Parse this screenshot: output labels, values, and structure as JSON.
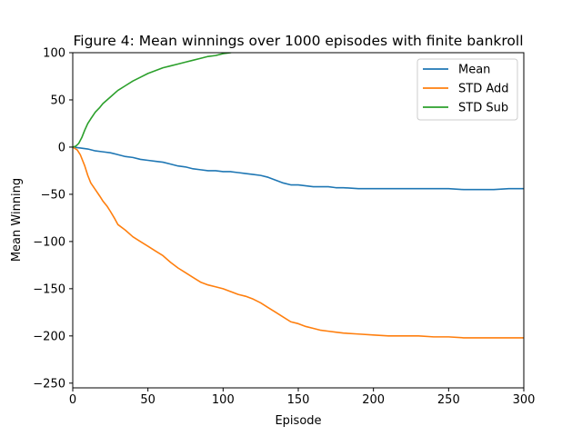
{
  "chart_data": {
    "type": "line",
    "title": "Figure 4: Mean winnings over 1000 episodes with finite bankroll",
    "xlabel": "Episode",
    "ylabel": "Mean Winning",
    "xlim": [
      0,
      300
    ],
    "ylim": [
      -255,
      100
    ],
    "xticks": [
      0,
      50,
      100,
      150,
      200,
      250,
      300
    ],
    "yticks": [
      -250,
      -200,
      -150,
      -100,
      -50,
      0,
      50,
      100
    ],
    "grid": false,
    "legend_position": "top-right",
    "series": [
      {
        "name": "Mean",
        "color": "#1f77b4",
        "x": [
          0,
          5,
          10,
          15,
          20,
          25,
          30,
          35,
          40,
          45,
          50,
          55,
          60,
          65,
          70,
          75,
          80,
          85,
          90,
          95,
          100,
          105,
          110,
          115,
          120,
          125,
          130,
          135,
          140,
          145,
          150,
          155,
          160,
          165,
          170,
          175,
          180,
          190,
          200,
          210,
          220,
          230,
          240,
          250,
          260,
          270,
          280,
          290,
          300
        ],
        "y": [
          0,
          -1,
          -2,
          -4,
          -5,
          -6,
          -8,
          -10,
          -11,
          -13,
          -14,
          -15,
          -16,
          -18,
          -20,
          -21,
          -23,
          -24,
          -25,
          -25,
          -26,
          -26,
          -27,
          -28,
          -29,
          -30,
          -32,
          -35,
          -38,
          -40,
          -40,
          -41,
          -42,
          -42,
          -42,
          -43,
          -43,
          -44,
          -44,
          -44,
          -44,
          -44,
          -44,
          -44,
          -45,
          -45,
          -45,
          -44,
          -44
        ]
      },
      {
        "name": "STD Add",
        "color": "#ff7f0e",
        "x": [
          0,
          3,
          5,
          8,
          10,
          12,
          15,
          18,
          20,
          23,
          25,
          28,
          30,
          35,
          40,
          45,
          50,
          55,
          60,
          65,
          70,
          75,
          80,
          85,
          90,
          95,
          100,
          105,
          110,
          115,
          120,
          125,
          130,
          135,
          140,
          145,
          150,
          155,
          160,
          165,
          170,
          175,
          180,
          190,
          200,
          210,
          220,
          230,
          240,
          250,
          260,
          270,
          280,
          290,
          300
        ],
        "y": [
          0,
          -3,
          -8,
          -20,
          -30,
          -38,
          -45,
          -52,
          -57,
          -63,
          -68,
          -76,
          -82,
          -88,
          -95,
          -100,
          -105,
          -110,
          -115,
          -122,
          -128,
          -133,
          -138,
          -143,
          -146,
          -148,
          -150,
          -153,
          -156,
          -158,
          -161,
          -165,
          -170,
          -175,
          -180,
          -185,
          -187,
          -190,
          -192,
          -194,
          -195,
          -196,
          -197,
          -198,
          -199,
          -200,
          -200,
          -200,
          -201,
          -201,
          -202,
          -202,
          -202,
          -202,
          -202
        ]
      },
      {
        "name": "STD Sub",
        "color": "#2ca02c",
        "x": [
          0,
          2,
          4,
          6,
          8,
          10,
          12,
          15,
          18,
          20,
          25,
          30,
          35,
          40,
          45,
          50,
          55,
          60,
          65,
          70,
          75,
          80,
          85,
          90,
          95,
          100,
          105
        ],
        "y": [
          0,
          1,
          4,
          10,
          18,
          25,
          30,
          37,
          42,
          46,
          53,
          60,
          65,
          70,
          74,
          78,
          81,
          84,
          86,
          88,
          90,
          92,
          94,
          96,
          97,
          99,
          100
        ]
      }
    ]
  }
}
